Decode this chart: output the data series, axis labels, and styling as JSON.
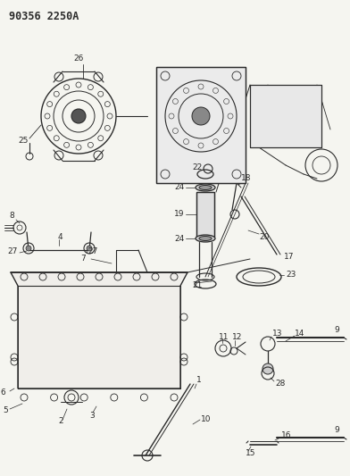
{
  "title_code": "90356 2250A",
  "bg_color": "#f5f5f0",
  "fig_width": 3.92,
  "fig_height": 5.33,
  "dpi": 100,
  "lc": "#2a2a2a",
  "label_fontsize": 6.5,
  "title_fontsize": 8.5
}
